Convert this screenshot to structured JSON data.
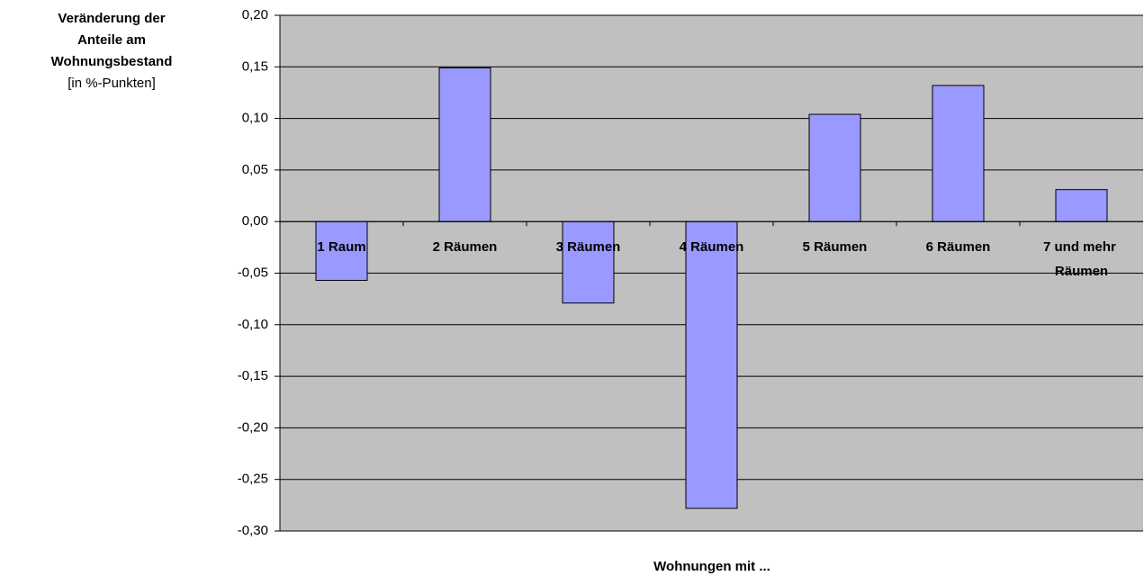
{
  "chart_data": {
    "type": "bar",
    "ylabel_lines": [
      "Veränderung der",
      "Anteile am",
      "Wohnungsbestand"
    ],
    "ylabel_unit": "[in %-Punkten]",
    "xlabel": "Wohnungen mit ...",
    "categories": [
      "1 Raum",
      "2 Räumen",
      "3 Räumen",
      "4 Räumen",
      "5 Räumen",
      "6 Räumen",
      "7 und mehr Räumen"
    ],
    "values": [
      -0.057,
      0.149,
      -0.079,
      -0.278,
      0.104,
      0.132,
      0.031
    ],
    "color": "#9999ff",
    "plot_background": "#c0c0c0",
    "ylim": [
      -0.3,
      0.2
    ],
    "yticks": [
      {
        "value": -0.3,
        "label": "-0,30"
      },
      {
        "value": -0.25,
        "label": "-0,25"
      },
      {
        "value": -0.2,
        "label": "-0,20"
      },
      {
        "value": -0.15,
        "label": "-0,15"
      },
      {
        "value": -0.1,
        "label": "-0,10"
      },
      {
        "value": -0.05,
        "label": "-0,05"
      },
      {
        "value": 0,
        "label": "0,00"
      },
      {
        "value": 0.05,
        "label": "0,05"
      },
      {
        "value": 0.1,
        "label": "0,10"
      },
      {
        "value": 0.15,
        "label": "0,15"
      },
      {
        "value": 0.2,
        "label": "0,20"
      }
    ],
    "grid": true
  }
}
